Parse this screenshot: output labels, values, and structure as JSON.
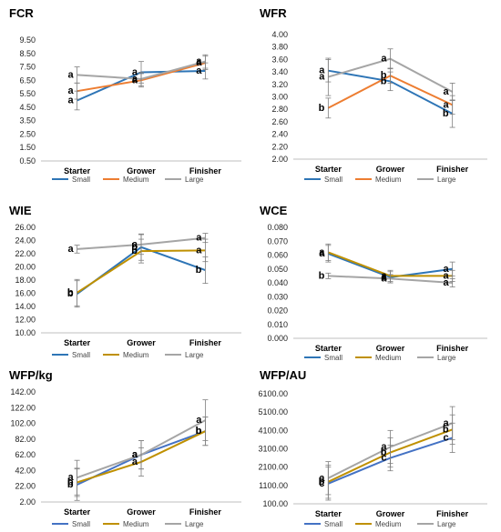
{
  "chart_data": [
    {
      "type": "line",
      "title": "FCR",
      "categories": [
        "Starter",
        "Grower",
        "Finisher"
      ],
      "ylim": [
        0.5,
        9.5
      ],
      "yticks": [
        "0.50",
        "1.50",
        "2.50",
        "3.50",
        "4.50",
        "5.50",
        "6.50",
        "7.50",
        "8.50",
        "9.50"
      ],
      "series": [
        {
          "name": "Small",
          "color": "#2e75b6",
          "values": [
            5.0,
            7.1,
            7.2
          ],
          "err": [
            0.7,
            0.8,
            0.6
          ],
          "sig": [
            "a",
            "a",
            "a"
          ]
        },
        {
          "name": "Medium",
          "color": "#ed7d31",
          "values": [
            5.7,
            6.5,
            7.8
          ],
          "err": [
            0.6,
            0.5,
            0.5
          ],
          "sig": [
            "a",
            "a",
            "a"
          ]
        },
        {
          "name": "Large",
          "color": "#a5a5a5",
          "values": [
            6.9,
            6.6,
            7.9
          ],
          "err": [
            0.6,
            0.5,
            0.5
          ],
          "sig": [
            "a",
            "a",
            "a"
          ]
        }
      ]
    },
    {
      "type": "line",
      "title": "WFR",
      "categories": [
        "Starter",
        "Grower",
        "Finisher"
      ],
      "ylim": [
        2.0,
        4.0
      ],
      "yticks": [
        "2.00",
        "2.20",
        "2.40",
        "2.60",
        "2.80",
        "3.00",
        "3.20",
        "3.40",
        "3.60",
        "3.80",
        "4.00"
      ],
      "series": [
        {
          "name": "Small",
          "color": "#2e75b6",
          "values": [
            3.42,
            3.25,
            2.73
          ],
          "err": [
            0.18,
            0.15,
            0.22
          ],
          "sig": [
            "a",
            "b",
            "b"
          ]
        },
        {
          "name": "Medium",
          "color": "#ed7d31",
          "values": [
            2.82,
            3.34,
            2.87
          ],
          "err": [
            0.16,
            0.12,
            0.15
          ],
          "sig": [
            "b",
            "b",
            "a"
          ]
        },
        {
          "name": "Large",
          "color": "#a5a5a5",
          "values": [
            3.32,
            3.61,
            3.08
          ],
          "err": [
            0.3,
            0.16,
            0.14
          ],
          "sig": [
            "a",
            "a",
            "a"
          ]
        }
      ]
    },
    {
      "type": "line",
      "title": "WIE",
      "categories": [
        "Starter",
        "Grower",
        "Finisher"
      ],
      "ylim": [
        10.0,
        26.0
      ],
      "yticks": [
        "10.00",
        "12.00",
        "14.00",
        "16.00",
        "18.00",
        "20.00",
        "22.00",
        "24.00",
        "26.00"
      ],
      "series": [
        {
          "name": "Small",
          "color": "#2e75b6",
          "values": [
            15.9,
            23.0,
            19.5
          ],
          "err": [
            2.0,
            2.0,
            2.0
          ],
          "sig": [
            "b",
            "b",
            "b"
          ]
        },
        {
          "name": "Medium",
          "color": "#bf9000",
          "values": [
            16.1,
            22.4,
            22.5
          ],
          "err": [
            2.0,
            1.8,
            1.7
          ],
          "sig": [
            "b",
            "b",
            "a"
          ]
        },
        {
          "name": "Large",
          "color": "#a5a5a5",
          "values": [
            22.7,
            23.4,
            24.4
          ],
          "err": [
            0.6,
            1.5,
            0.7
          ],
          "sig": [
            "a",
            "a",
            "a"
          ]
        }
      ]
    },
    {
      "type": "line",
      "title": "WCE",
      "categories": [
        "Starter",
        "Grower",
        "Finisher"
      ],
      "ylim": [
        0.0,
        0.08
      ],
      "yticks": [
        "0.000",
        "0.010",
        "0.020",
        "0.030",
        "0.040",
        "0.050",
        "0.060",
        "0.070",
        "0.080"
      ],
      "series": [
        {
          "name": "Small",
          "color": "#2e75b6",
          "values": [
            0.061,
            0.044,
            0.05
          ],
          "err": [
            0.006,
            0.004,
            0.005
          ],
          "sig": [
            "a",
            "a",
            "a"
          ]
        },
        {
          "name": "Medium",
          "color": "#bf9000",
          "values": [
            0.062,
            0.045,
            0.045
          ],
          "err": [
            0.006,
            0.004,
            0.004
          ],
          "sig": [
            "a",
            "a",
            "a"
          ]
        },
        {
          "name": "Large",
          "color": "#a5a5a5",
          "values": [
            0.045,
            0.043,
            0.04
          ],
          "err": [
            0.002,
            0.003,
            0.003
          ],
          "sig": [
            "b",
            "a",
            "a"
          ]
        }
      ]
    },
    {
      "type": "line",
      "title": "WFP/kg",
      "categories": [
        "Starter",
        "Grower",
        "Finisher"
      ],
      "ylim": [
        2.0,
        142.0
      ],
      "yticks": [
        "2.00",
        "22.00",
        "42.00",
        "62.00",
        "82.00",
        "102.00",
        "122.00",
        "142.00"
      ],
      "series": [
        {
          "name": "Small",
          "color": "#4472c4",
          "values": [
            24,
            62,
            92
          ],
          "err": [
            20,
            18,
            18
          ],
          "sig": [
            "b",
            "a",
            "b"
          ]
        },
        {
          "name": "Medium",
          "color": "#bf9000",
          "values": [
            27,
            53,
            92
          ],
          "err": [
            18,
            18,
            18
          ],
          "sig": [
            "b",
            "a",
            "b"
          ]
        },
        {
          "name": "Large",
          "color": "#a5a5a5",
          "values": [
            33,
            62,
            106
          ],
          "err": [
            22,
            18,
            26
          ],
          "sig": [
            "a",
            "a",
            "a"
          ]
        }
      ]
    },
    {
      "type": "line",
      "title": "WFP/AU",
      "categories": [
        "Starter",
        "Grower",
        "Finisher"
      ],
      "ylim": [
        100.0,
        6100.0
      ],
      "yticks": [
        "100.00",
        "1100.00",
        "2100.00",
        "3100.00",
        "4100.00",
        "5100.00",
        "6100.00"
      ],
      "series": [
        {
          "name": "Small",
          "color": "#4472c4",
          "values": [
            1200,
            2600,
            3700
          ],
          "err": [
            900,
            700,
            800
          ],
          "sig": [
            "c",
            "c",
            "c"
          ]
        },
        {
          "name": "Medium",
          "color": "#bf9000",
          "values": [
            1300,
            2900,
            4150
          ],
          "err": [
            900,
            800,
            800
          ],
          "sig": [
            "b",
            "b",
            "b"
          ]
        },
        {
          "name": "Large",
          "color": "#a5a5a5",
          "values": [
            1500,
            3200,
            4500
          ],
          "err": [
            900,
            900,
            900
          ],
          "sig": [
            "a",
            "a",
            "a"
          ]
        }
      ]
    }
  ]
}
